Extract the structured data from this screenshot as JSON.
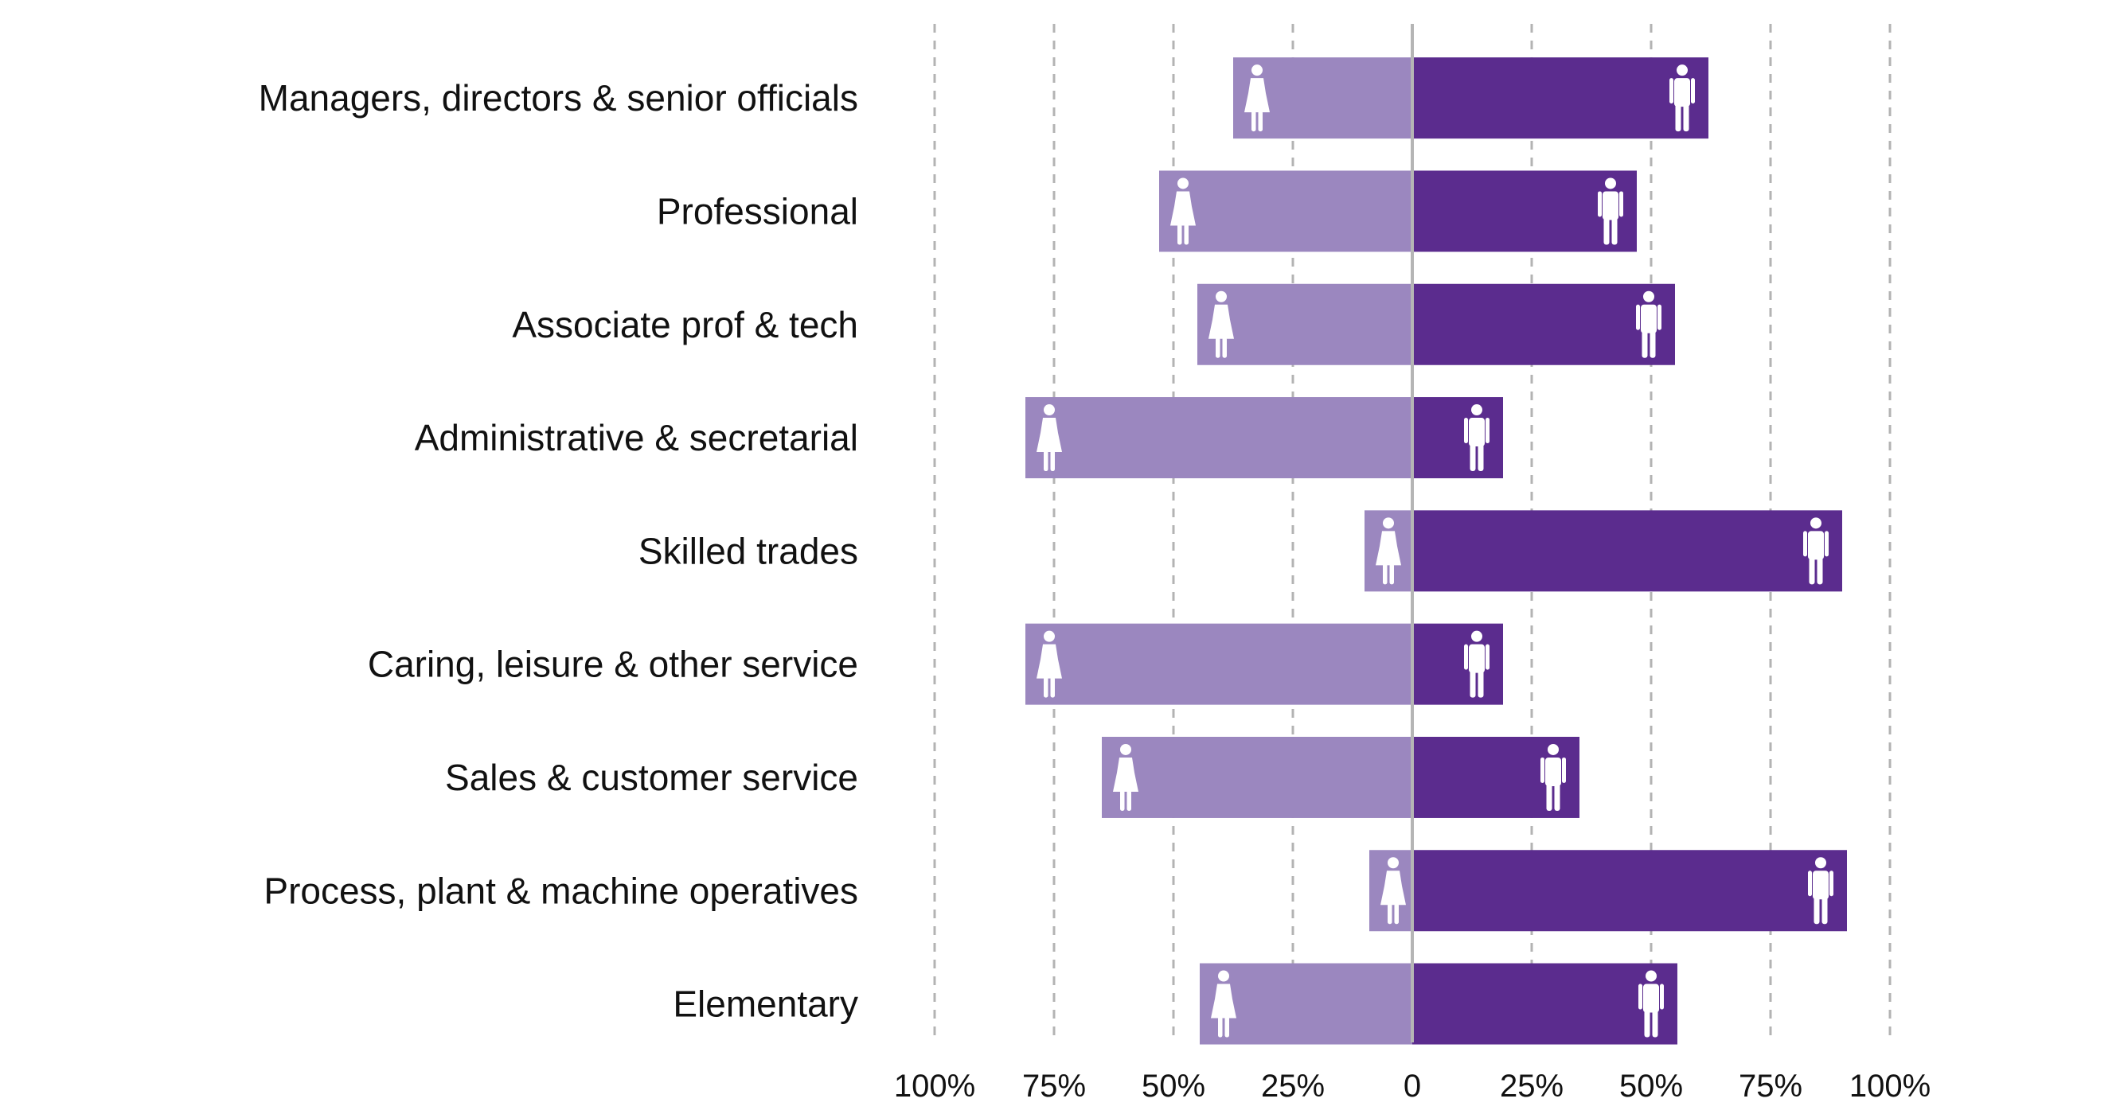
{
  "chart_data": {
    "type": "bar",
    "orientation": "horizontal-diverging",
    "categories": [
      "Managers, directors & senior officials",
      "Professional",
      "Associate prof & tech",
      "Administrative & secretarial",
      "Skilled trades",
      "Caring, leisure & other service",
      "Sales & customer service",
      "Process, plant & machine operatives",
      "Elementary"
    ],
    "series": [
      {
        "icon": "female-icon",
        "side": "left",
        "color": "#9b87bf",
        "values": [
          37.5,
          53,
          45,
          81,
          10,
          81,
          65,
          9,
          44.5
        ]
      },
      {
        "icon": "male-icon",
        "side": "right",
        "color": "#5b2c8e",
        "values": [
          62,
          47,
          55,
          19,
          90,
          19,
          35,
          91,
          55.5
        ]
      }
    ],
    "x_ticks": [
      "100%",
      "75%",
      "50%",
      "25%",
      "0",
      "25%",
      "50%",
      "75%",
      "100%"
    ],
    "xlim": [
      -100,
      100
    ],
    "grid": true,
    "title": "",
    "xlabel": "",
    "ylabel": "",
    "legend": "none"
  }
}
